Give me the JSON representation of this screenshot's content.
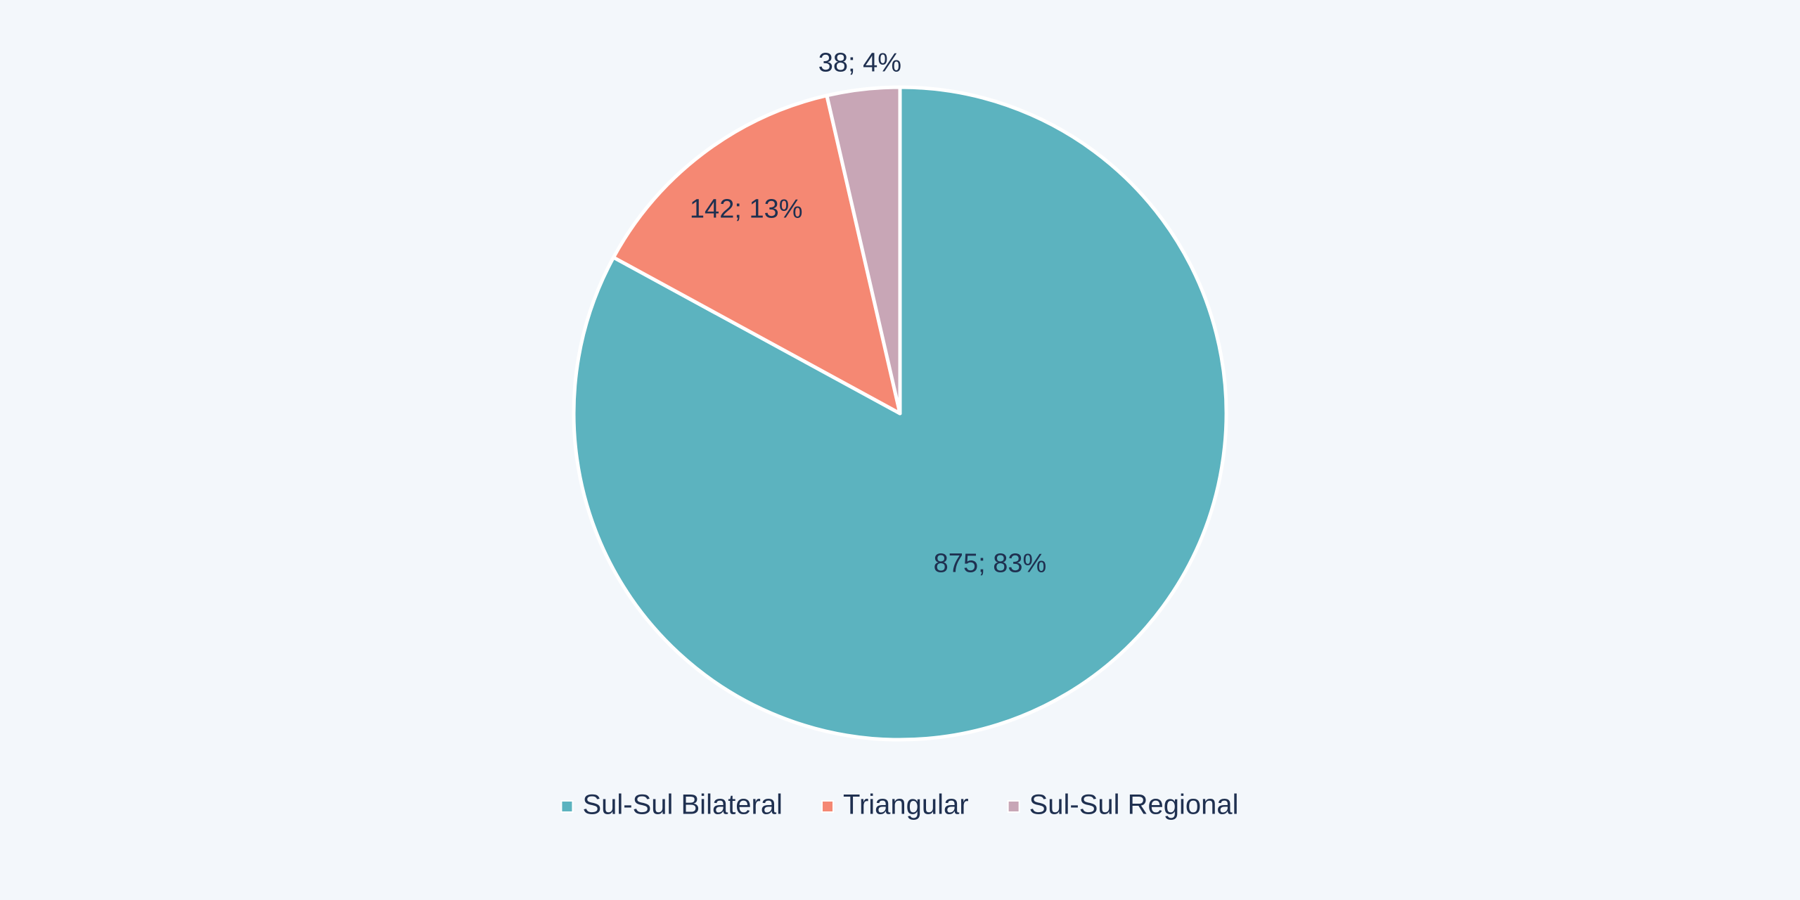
{
  "chart_data": {
    "type": "pie",
    "title": "",
    "slices": [
      {
        "name": "Sul-Sul Bilateral",
        "value": 875,
        "percent": 83,
        "label": "875; 83%",
        "color": "#5cb3bf"
      },
      {
        "name": "Triangular",
        "value": 142,
        "percent": 13,
        "label": "142; 13%",
        "color": "#f58873"
      },
      {
        "name": "Sul-Sul Regional",
        "value": 38,
        "percent": 4,
        "label": "38; 4%",
        "color": "#c8a6b6"
      }
    ],
    "start_angle": "12 o'clock",
    "direction": "clockwise",
    "legend": {
      "placement": "bottom"
    }
  },
  "colors": {
    "background": "#f3f7fb",
    "text": "#1f3050",
    "slice_border": "#ffffff"
  }
}
